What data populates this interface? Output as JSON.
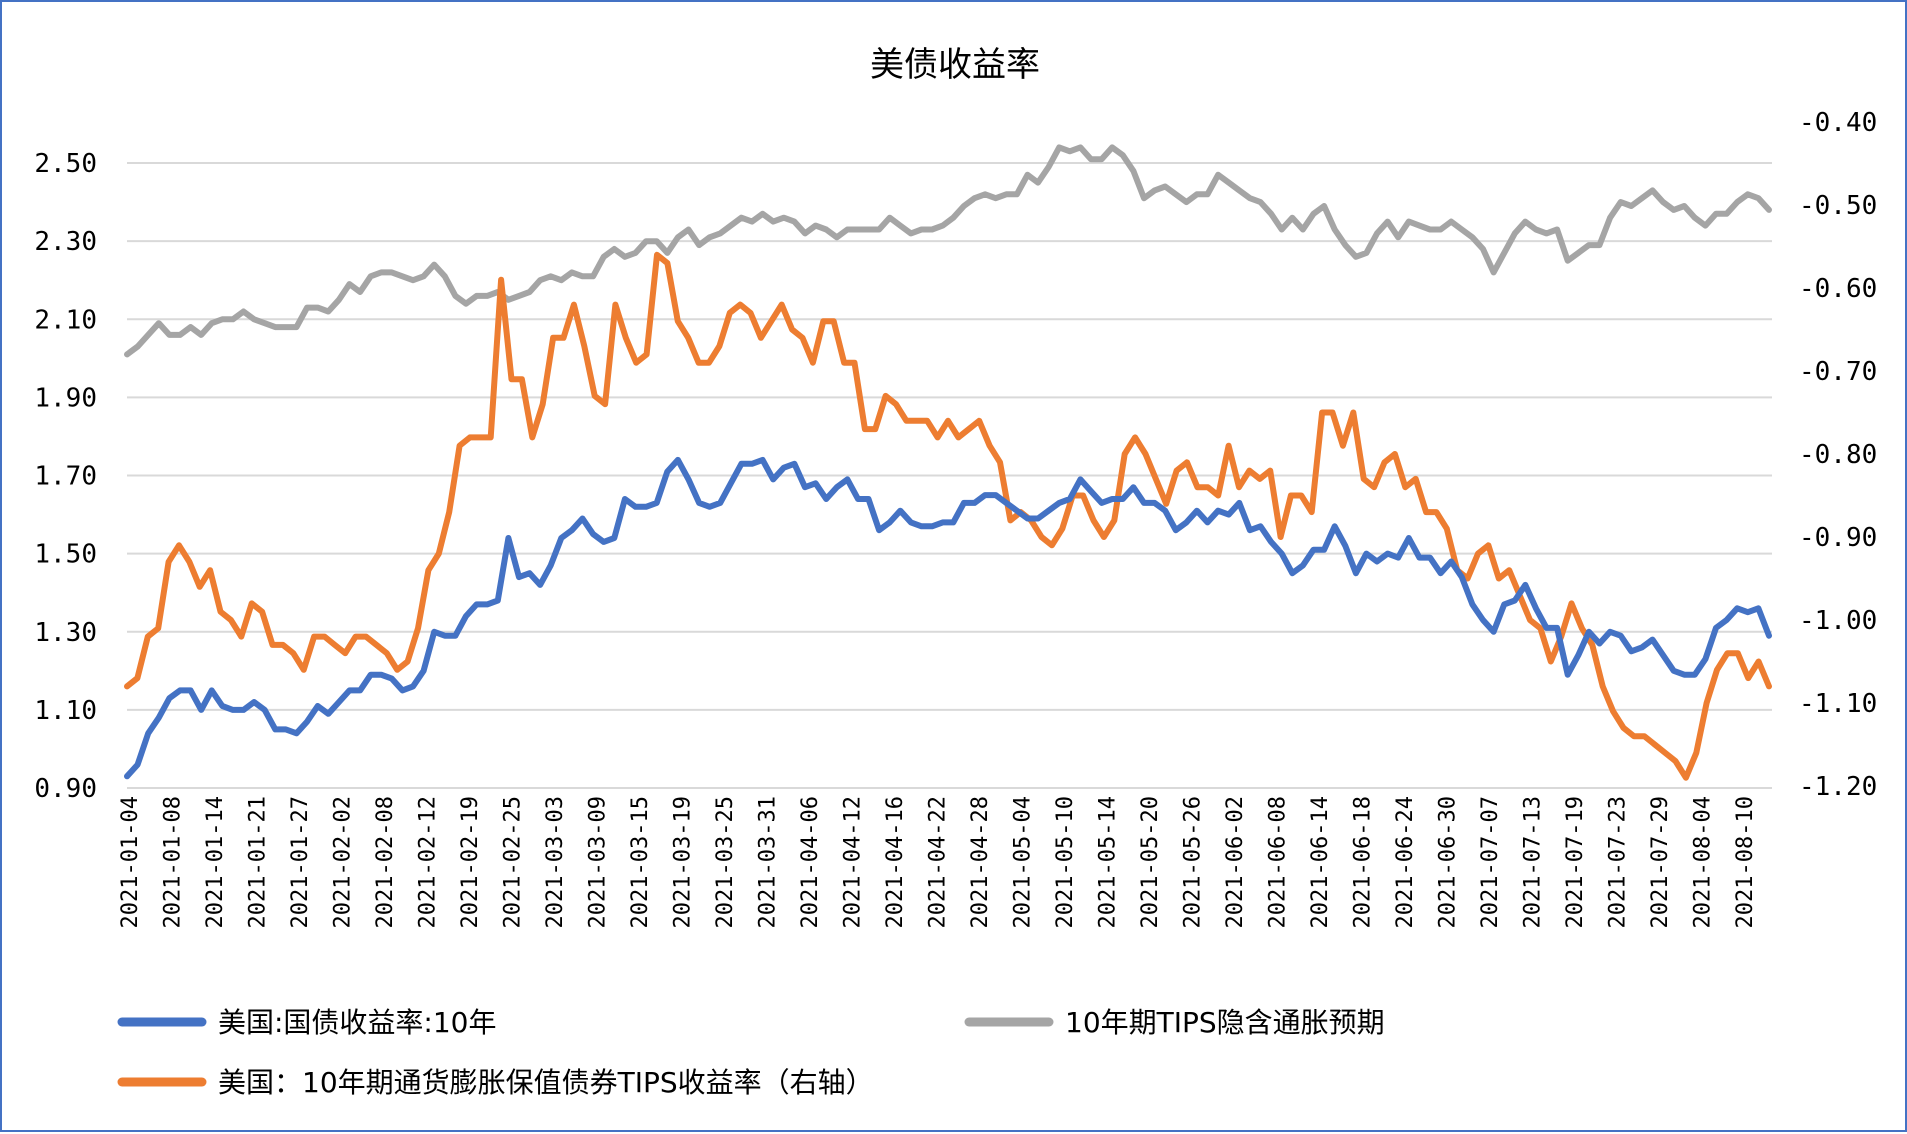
{
  "chart_data": {
    "type": "line",
    "title": "美债收益率",
    "grid": true,
    "legend_position": "bottom",
    "x_tick_labels": [
      "2021-01-04",
      "2021-01-08",
      "2021-01-14",
      "2021-01-21",
      "2021-01-27",
      "2021-02-02",
      "2021-02-08",
      "2021-02-12",
      "2021-02-19",
      "2021-02-25",
      "2021-03-03",
      "2021-03-09",
      "2021-03-15",
      "2021-03-19",
      "2021-03-25",
      "2021-03-31",
      "2021-04-06",
      "2021-04-12",
      "2021-04-16",
      "2021-04-22",
      "2021-04-28",
      "2021-05-04",
      "2021-05-10",
      "2021-05-14",
      "2021-05-20",
      "2021-05-26",
      "2021-06-02",
      "2021-06-08",
      "2021-06-14",
      "2021-06-18",
      "2021-06-24",
      "2021-06-30",
      "2021-07-07",
      "2021-07-13",
      "2021-07-19",
      "2021-07-23",
      "2021-07-29",
      "2021-08-04",
      "2021-08-10"
    ],
    "left_axis": {
      "ylim": [
        0.9,
        2.6
      ],
      "ticks": [
        "0.90",
        "1.10",
        "1.30",
        "1.50",
        "1.70",
        "1.90",
        "2.10",
        "2.30",
        "2.50"
      ]
    },
    "right_axis": {
      "ylim": [
        -1.2,
        -0.4
      ],
      "ticks": [
        "-1.20",
        "-1.10",
        "-1.00",
        "-0.90",
        "-0.80",
        "-0.70",
        "-0.60",
        "-0.50",
        "-0.40"
      ]
    },
    "series": [
      {
        "name": "美国:国债收益率:10年",
        "axis": "left",
        "color": "#4472c4",
        "values": [
          0.93,
          0.96,
          1.04,
          1.08,
          1.13,
          1.15,
          1.15,
          1.1,
          1.15,
          1.11,
          1.1,
          1.1,
          1.12,
          1.1,
          1.05,
          1.05,
          1.04,
          1.07,
          1.11,
          1.09,
          1.12,
          1.15,
          1.15,
          1.19,
          1.19,
          1.18,
          1.15,
          1.16,
          1.2,
          1.3,
          1.29,
          1.29,
          1.34,
          1.37,
          1.37,
          1.38,
          1.54,
          1.44,
          1.45,
          1.42,
          1.47,
          1.54,
          1.56,
          1.59,
          1.55,
          1.53,
          1.54,
          1.64,
          1.62,
          1.62,
          1.63,
          1.71,
          1.74,
          1.69,
          1.63,
          1.62,
          1.63,
          1.68,
          1.73,
          1.73,
          1.74,
          1.69,
          1.72,
          1.73,
          1.67,
          1.68,
          1.64,
          1.67,
          1.69,
          1.64,
          1.64,
          1.56,
          1.58,
          1.61,
          1.58,
          1.57,
          1.57,
          1.58,
          1.58,
          1.63,
          1.63,
          1.65,
          1.65,
          1.63,
          1.61,
          1.59,
          1.59,
          1.61,
          1.63,
          1.64,
          1.69,
          1.66,
          1.63,
          1.64,
          1.64,
          1.67,
          1.63,
          1.63,
          1.61,
          1.56,
          1.58,
          1.61,
          1.58,
          1.61,
          1.6,
          1.63,
          1.56,
          1.57,
          1.53,
          1.5,
          1.45,
          1.47,
          1.51,
          1.51,
          1.57,
          1.52,
          1.45,
          1.5,
          1.48,
          1.5,
          1.49,
          1.54,
          1.49,
          1.49,
          1.45,
          1.48,
          1.44,
          1.37,
          1.33,
          1.3,
          1.37,
          1.38,
          1.42,
          1.36,
          1.31,
          1.31,
          1.19,
          1.24,
          1.3,
          1.27,
          1.3,
          1.29,
          1.25,
          1.26,
          1.28,
          1.24,
          1.2,
          1.19,
          1.19,
          1.23,
          1.31,
          1.33,
          1.36,
          1.35,
          1.36,
          1.29
        ]
      },
      {
        "name": "10年期TIPS隐含通胀预期",
        "axis": "left",
        "color": "#a5a5a5",
        "values": [
          2.01,
          2.03,
          2.06,
          2.09,
          2.06,
          2.06,
          2.08,
          2.06,
          2.09,
          2.1,
          2.1,
          2.12,
          2.1,
          2.09,
          2.08,
          2.08,
          2.08,
          2.13,
          2.13,
          2.12,
          2.15,
          2.19,
          2.17,
          2.21,
          2.22,
          2.22,
          2.21,
          2.2,
          2.21,
          2.24,
          2.21,
          2.16,
          2.14,
          2.16,
          2.16,
          2.17,
          2.15,
          2.16,
          2.17,
          2.2,
          2.21,
          2.2,
          2.22,
          2.21,
          2.21,
          2.26,
          2.28,
          2.26,
          2.27,
          2.3,
          2.3,
          2.27,
          2.31,
          2.33,
          2.29,
          2.31,
          2.32,
          2.34,
          2.36,
          2.35,
          2.37,
          2.35,
          2.36,
          2.35,
          2.32,
          2.34,
          2.33,
          2.31,
          2.33,
          2.33,
          2.33,
          2.33,
          2.36,
          2.34,
          2.32,
          2.33,
          2.33,
          2.34,
          2.36,
          2.39,
          2.41,
          2.42,
          2.41,
          2.42,
          2.42,
          2.47,
          2.45,
          2.49,
          2.54,
          2.53,
          2.54,
          2.51,
          2.51,
          2.54,
          2.52,
          2.48,
          2.41,
          2.43,
          2.44,
          2.42,
          2.4,
          2.42,
          2.42,
          2.47,
          2.45,
          2.43,
          2.41,
          2.4,
          2.37,
          2.33,
          2.36,
          2.33,
          2.37,
          2.39,
          2.33,
          2.29,
          2.26,
          2.27,
          2.32,
          2.35,
          2.31,
          2.35,
          2.34,
          2.33,
          2.33,
          2.35,
          2.33,
          2.31,
          2.28,
          2.22,
          2.27,
          2.32,
          2.35,
          2.33,
          2.32,
          2.33,
          2.25,
          2.27,
          2.29,
          2.29,
          2.36,
          2.4,
          2.39,
          2.41,
          2.43,
          2.4,
          2.38,
          2.39,
          2.36,
          2.34,
          2.37,
          2.37,
          2.4,
          2.42,
          2.41,
          2.38
        ]
      },
      {
        "name": "美国：10年期通货膨胀保值债券TIPS收益率（右轴）",
        "axis": "right",
        "color": "#ed7d31",
        "values": [
          -1.08,
          -1.07,
          -1.02,
          -1.01,
          -0.93,
          -0.91,
          -0.93,
          -0.96,
          -0.94,
          -0.99,
          -1.0,
          -1.02,
          -0.98,
          -0.99,
          -1.03,
          -1.03,
          -1.04,
          -1.06,
          -1.02,
          -1.02,
          -1.03,
          -1.04,
          -1.02,
          -1.02,
          -1.03,
          -1.04,
          -1.06,
          -1.05,
          -1.01,
          -0.94,
          -0.92,
          -0.87,
          -0.79,
          -0.78,
          -0.78,
          -0.78,
          -0.59,
          -0.71,
          -0.71,
          -0.78,
          -0.74,
          -0.66,
          -0.66,
          -0.62,
          -0.67,
          -0.73,
          -0.74,
          -0.62,
          -0.66,
          -0.69,
          -0.68,
          -0.56,
          -0.57,
          -0.64,
          -0.66,
          -0.69,
          -0.69,
          -0.67,
          -0.63,
          -0.62,
          -0.63,
          -0.66,
          -0.64,
          -0.62,
          -0.65,
          -0.66,
          -0.69,
          -0.64,
          -0.64,
          -0.69,
          -0.69,
          -0.77,
          -0.77,
          -0.73,
          -0.74,
          -0.76,
          -0.76,
          -0.76,
          -0.78,
          -0.76,
          -0.78,
          -0.77,
          -0.76,
          -0.79,
          -0.81,
          -0.88,
          -0.87,
          -0.88,
          -0.9,
          -0.91,
          -0.89,
          -0.85,
          -0.85,
          -0.88,
          -0.9,
          -0.88,
          -0.8,
          -0.78,
          -0.8,
          -0.83,
          -0.86,
          -0.82,
          -0.81,
          -0.84,
          -0.84,
          -0.85,
          -0.79,
          -0.84,
          -0.82,
          -0.83,
          -0.82,
          -0.9,
          -0.85,
          -0.85,
          -0.87,
          -0.75,
          -0.75,
          -0.79,
          -0.75,
          -0.83,
          -0.84,
          -0.81,
          -0.8,
          -0.84,
          -0.83,
          -0.87,
          -0.87,
          -0.89,
          -0.94,
          -0.95,
          -0.92,
          -0.91,
          -0.95,
          -0.94,
          -0.97,
          -1.0,
          -1.01,
          -1.05,
          -1.02,
          -0.98,
          -1.01,
          -1.03,
          -1.08,
          -1.11,
          -1.13,
          -1.14,
          -1.14,
          -1.15,
          -1.16,
          -1.17,
          -1.19,
          -1.16,
          -1.1,
          -1.06,
          -1.04,
          -1.04,
          -1.07,
          -1.05,
          -1.08
        ]
      }
    ]
  }
}
